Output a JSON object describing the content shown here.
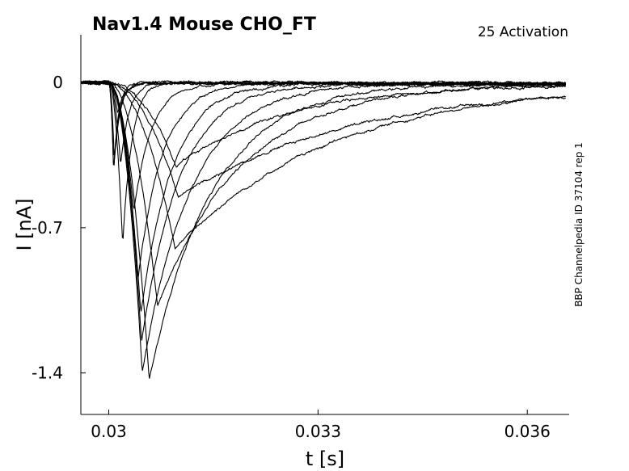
{
  "chart_data": {
    "type": "line",
    "title": "Nav1.4  Mouse  CHO_FT",
    "annotation": "25  Activation",
    "side_note": "BBP Channelpedia ID 37104 rep 1",
    "xlabel": "t [s]",
    "ylabel": "I [nA]",
    "xlim": [
      0.0296,
      0.0366
    ],
    "ylim": [
      -1.6,
      0.23
    ],
    "xticks": [
      {
        "value": 0.03,
        "label": "0.03"
      },
      {
        "value": 0.033,
        "label": "0.033"
      },
      {
        "value": 0.036,
        "label": "0.036"
      }
    ],
    "yticks": [
      {
        "value": 0,
        "label": "0"
      },
      {
        "value": -0.7,
        "label": "-0.7"
      },
      {
        "value": -1.4,
        "label": "-1.4"
      }
    ],
    "grid": false,
    "legend": "none",
    "onset": 0.03,
    "series": [
      {
        "peak_time": 0.03007,
        "amplitude": -0.44,
        "rise": 3.5e-05,
        "decay": 7e-05
      },
      {
        "peak_time": 0.03007,
        "amplitude": -0.42,
        "rise": 3.5e-05,
        "decay": 8e-05
      },
      {
        "peak_time": 0.03008,
        "amplitude": -0.38,
        "rise": 4e-05,
        "decay": 9e-05
      },
      {
        "peak_time": 0.03013,
        "amplitude": -0.15,
        "rise": 5e-05,
        "decay": 0.0001
      },
      {
        "peak_time": 0.03017,
        "amplitude": -0.4,
        "rise": 6e-05,
        "decay": 0.00012
      },
      {
        "peak_time": 0.0302,
        "amplitude": -0.78,
        "rise": 8e-05,
        "decay": 0.00013
      },
      {
        "peak_time": 0.03036,
        "amplitude": -0.62,
        "rise": 0.0001,
        "decay": 0.00025
      },
      {
        "peak_time": 0.03042,
        "amplitude": -0.94,
        "rise": 0.00015,
        "decay": 0.00035
      },
      {
        "peak_time": 0.03046,
        "amplitude": -1.12,
        "rise": 0.00018,
        "decay": 0.00045
      },
      {
        "peak_time": 0.03047,
        "amplitude": -1.25,
        "rise": 0.00019,
        "decay": 0.00055
      },
      {
        "peak_time": 0.03048,
        "amplitude": -1.4,
        "rise": 0.0002,
        "decay": 0.0007
      },
      {
        "peak_time": 0.03058,
        "amplitude": -1.43,
        "rise": 0.00022,
        "decay": 0.0009
      },
      {
        "peak_time": 0.0307,
        "amplitude": -1.08,
        "rise": 0.00028,
        "decay": 0.0012
      },
      {
        "peak_time": 0.03097,
        "amplitude": -0.4,
        "rise": 0.0006,
        "decay": 0.0016
      },
      {
        "peak_time": 0.03095,
        "amplitude": -0.8,
        "rise": 0.00032,
        "decay": 0.0022
      },
      {
        "peak_time": 0.031,
        "amplitude": -0.55,
        "rise": 0.0004,
        "decay": 0.0025
      }
    ]
  }
}
